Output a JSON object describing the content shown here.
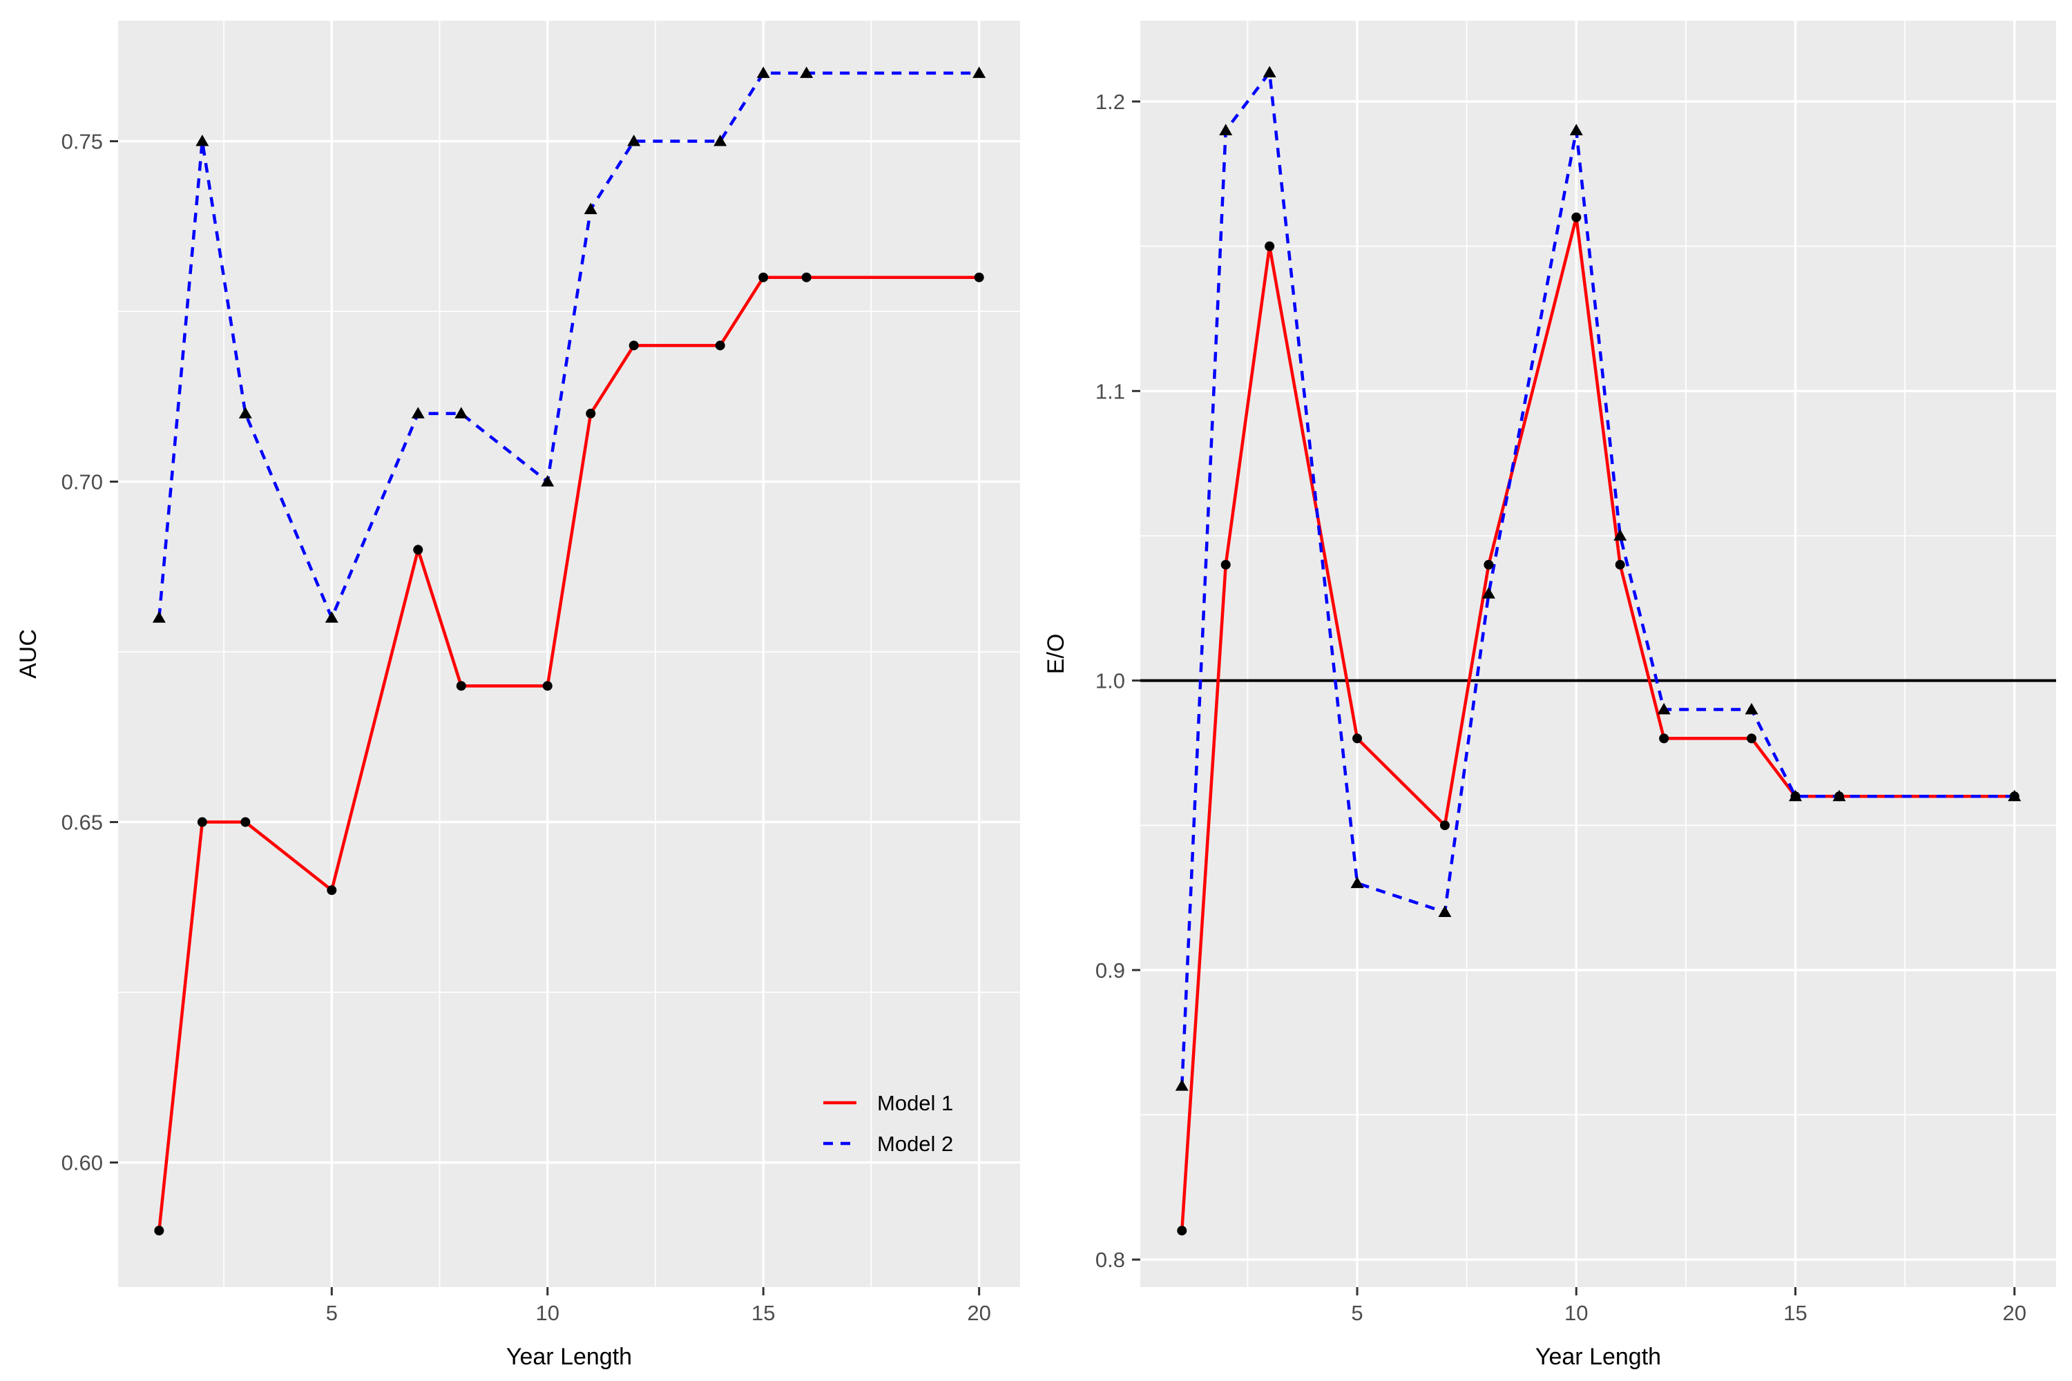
{
  "figure": {
    "background": "#FFFFFF"
  },
  "palette": {
    "model1_line": "#FF0000",
    "model2_line": "#0000FF",
    "marker_fill": "#000000",
    "panel_background": "#EBEBEB",
    "gridline": "#FFFFFF",
    "tick_label_color": "#4D4D4D",
    "tick_mark_color": "#333333",
    "axis_title_color": "#000000",
    "reference_line_color": "#000000"
  },
  "legend": {
    "entries": [
      {
        "label": "Model 1",
        "series_key": "model1",
        "line_style": "solid"
      },
      {
        "label": "Model 2",
        "series_key": "model2",
        "line_style": "dashed"
      }
    ]
  },
  "chart_data": [
    {
      "type": "line",
      "title": "",
      "xlabel": "Year Length",
      "ylabel": "AUC",
      "xlim": [
        0.05,
        20.95
      ],
      "ylim": [
        0.5817,
        0.7677
      ],
      "x_ticks": [
        5,
        10,
        15,
        20
      ],
      "x_tick_labels": [
        "5",
        "10",
        "15",
        "20"
      ],
      "y_ticks": [
        0.6,
        0.65,
        0.7,
        0.75
      ],
      "y_tick_labels": [
        "0.60",
        "0.65",
        "0.70",
        "0.75"
      ],
      "x_minor_ticks": [
        2.5,
        7.5,
        12.5,
        17.5
      ],
      "y_minor_ticks": [
        0.625,
        0.675,
        0.725
      ],
      "grid": true,
      "legend_position": "inside-bottom-right",
      "x": [
        1,
        2,
        3,
        5,
        7,
        8,
        10,
        11,
        12,
        14,
        15,
        16,
        20
      ],
      "series": [
        {
          "name": "Model 1",
          "color_key": "model1_line",
          "line_style": "solid",
          "marker": "circle",
          "values": [
            0.59,
            0.65,
            0.65,
            0.64,
            0.69,
            0.67,
            0.67,
            0.71,
            0.72,
            0.72,
            0.73,
            0.73,
            0.73
          ]
        },
        {
          "name": "Model 2",
          "color_key": "model2_line",
          "line_style": "dashed",
          "marker": "triangle",
          "values": [
            0.68,
            0.75,
            0.71,
            0.68,
            0.71,
            0.71,
            0.7,
            0.74,
            0.75,
            0.75,
            0.76,
            0.76,
            0.76
          ]
        }
      ]
    },
    {
      "type": "line",
      "title": "",
      "xlabel": "Year Length",
      "ylabel": "E/O",
      "xlim": [
        0.05,
        20.95
      ],
      "ylim": [
        0.7905,
        1.2279
      ],
      "x_ticks": [
        5,
        10,
        15,
        20
      ],
      "x_tick_labels": [
        "5",
        "10",
        "15",
        "20"
      ],
      "y_ticks": [
        0.8,
        0.9,
        1.0,
        1.1,
        1.2
      ],
      "y_tick_labels": [
        "0.8",
        "0.9",
        "1.0",
        "1.1",
        "1.2"
      ],
      "x_minor_ticks": [
        2.5,
        7.5,
        12.5,
        17.5
      ],
      "y_minor_ticks": [
        0.85,
        0.95,
        1.05,
        1.15
      ],
      "grid": true,
      "reference_line_y": 1.0,
      "x": [
        1,
        2,
        3,
        5,
        7,
        8,
        10,
        11,
        12,
        14,
        15,
        16,
        20
      ],
      "series": [
        {
          "name": "Model 1",
          "color_key": "model1_line",
          "line_style": "solid",
          "marker": "circle",
          "values": [
            0.81,
            1.04,
            1.15,
            0.98,
            0.95,
            1.04,
            1.16,
            1.04,
            0.98,
            0.98,
            0.96,
            0.96,
            0.96
          ]
        },
        {
          "name": "Model 2",
          "color_key": "model2_line",
          "line_style": "dashed",
          "marker": "triangle",
          "values": [
            0.86,
            1.19,
            1.21,
            0.93,
            0.92,
            1.03,
            1.19,
            1.05,
            0.99,
            0.99,
            0.96,
            0.96,
            0.96
          ]
        }
      ]
    }
  ]
}
